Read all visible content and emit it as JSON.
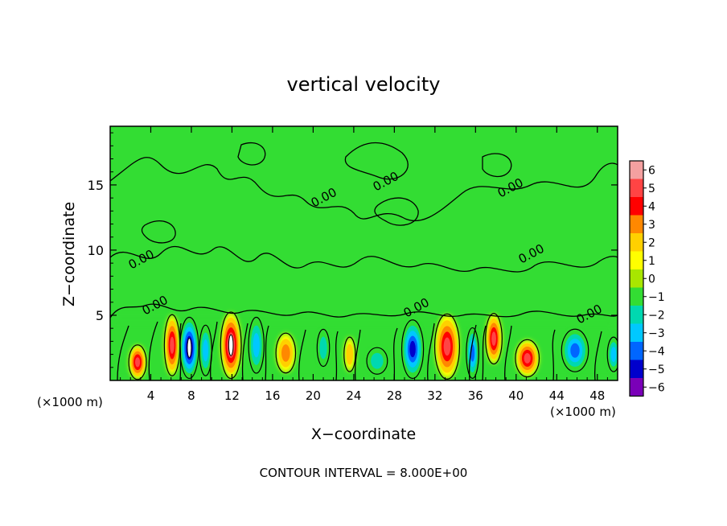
{
  "chart_data": {
    "type": "heatmap",
    "title": "vertical velocity",
    "xlabel": "X−coordinate",
    "ylabel": "Z−coordinate",
    "x_unit_left": "(×1000 m)",
    "x_unit_right": "(×1000 m)",
    "footer": "CONTOUR INTERVAL = 8.000E+00",
    "xlim": [
      0,
      50
    ],
    "ylim": [
      0,
      19.5
    ],
    "x_ticks": [
      4,
      8,
      12,
      16,
      20,
      24,
      28,
      32,
      36,
      40,
      44,
      48
    ],
    "y_ticks": [
      5,
      10,
      15
    ],
    "colorbar": {
      "levels": [
        6,
        5,
        4,
        3,
        2,
        1,
        0,
        -1,
        -2,
        -3,
        -4,
        -5,
        -6
      ],
      "labels": [
        "6",
        "5",
        "4",
        "3",
        "2",
        "1",
        "0",
        "−1",
        "−2",
        "−3",
        "−4",
        "−5",
        "−6"
      ],
      "colors": [
        "#f4a0a0",
        "#ff4444",
        "#ff0000",
        "#ff8800",
        "#ffd000",
        "#ffff00",
        "#a8e600",
        "#33dd33",
        "#00d8b0",
        "#00c8ff",
        "#0066ff",
        "#0000cc",
        "#7a00b8"
      ]
    },
    "contour_labels": [
      "0.00",
      "0.00",
      "0.00",
      "0.00",
      "0.00",
      "0.00",
      "0.00",
      "0.00"
    ],
    "cells": [
      {
        "x": 2.7,
        "z": 1.4,
        "w": 1.7,
        "h": 2.6,
        "value": 5
      },
      {
        "x": 6.1,
        "z": 2.7,
        "w": 1.5,
        "h": 4.6,
        "value": 5
      },
      {
        "x": 7.8,
        "z": 2.5,
        "w": 1.8,
        "h": 4.6,
        "value": -6
      },
      {
        "x": 9.4,
        "z": 2.3,
        "w": 1.2,
        "h": 3.8,
        "value": -3
      },
      {
        "x": 11.9,
        "z": 2.7,
        "w": 2.0,
        "h": 5.0,
        "value": 6
      },
      {
        "x": 14.4,
        "z": 2.7,
        "w": 1.5,
        "h": 4.2,
        "value": -3
      },
      {
        "x": 17.3,
        "z": 2.1,
        "w": 1.9,
        "h": 3.0,
        "value": 3
      },
      {
        "x": 21.0,
        "z": 2.5,
        "w": 1.2,
        "h": 2.8,
        "value": -2
      },
      {
        "x": 23.6,
        "z": 2.0,
        "w": 1.1,
        "h": 2.6,
        "value": 2
      },
      {
        "x": 26.3,
        "z": 1.5,
        "w": 2.0,
        "h": 2.0,
        "value": -2
      },
      {
        "x": 29.8,
        "z": 2.4,
        "w": 2.1,
        "h": 4.4,
        "value": -5
      },
      {
        "x": 33.2,
        "z": 2.6,
        "w": 2.4,
        "h": 4.9,
        "value": 5
      },
      {
        "x": 35.7,
        "z": 2.1,
        "w": 1.2,
        "h": 3.8,
        "value": -4
      },
      {
        "x": 37.8,
        "z": 3.2,
        "w": 1.6,
        "h": 3.8,
        "value": 5
      },
      {
        "x": 41.1,
        "z": 1.7,
        "w": 2.3,
        "h": 2.8,
        "value": 5
      },
      {
        "x": 45.8,
        "z": 2.3,
        "w": 2.6,
        "h": 3.2,
        "value": -4
      },
      {
        "x": 49.6,
        "z": 2.0,
        "w": 1.2,
        "h": 2.6,
        "value": -3
      }
    ]
  }
}
